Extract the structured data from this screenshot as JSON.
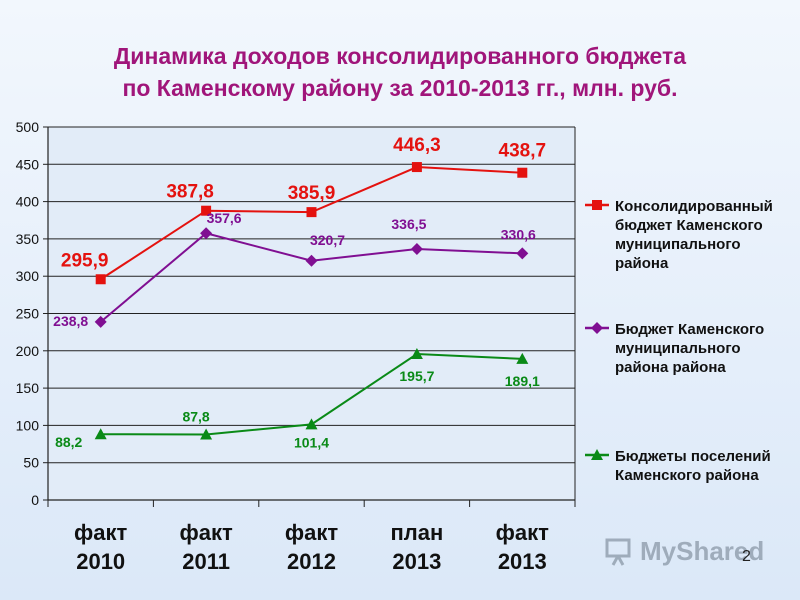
{
  "title": {
    "line1": "Динамика доходов консолидированного бюджета",
    "line2": "по Каменскому району за 2010-2013 гг., млн. руб."
  },
  "page_number": "2",
  "watermark": {
    "text": "MyShared"
  },
  "colors": {
    "consolidated": "#e4120f",
    "municipal": "#800f92",
    "settlements": "#0a8a17",
    "title": "#a0157a"
  },
  "chart_data": {
    "type": "line",
    "categories": [
      [
        "факт",
        "2010"
      ],
      [
        "факт",
        "2011"
      ],
      [
        "факт",
        "2012"
      ],
      [
        "план",
        "2013"
      ],
      [
        "факт",
        "2013"
      ]
    ],
    "ylim": [
      0,
      500
    ],
    "yticks": [
      "0",
      "50",
      "100",
      "150",
      "200",
      "250",
      "300",
      "350",
      "400",
      "450",
      "500"
    ],
    "grid": true,
    "legend_position": "right",
    "series": [
      {
        "name": [
          "Консолидированный",
          "бюджет Каменского",
          "муниципального",
          "района"
        ],
        "marker": "square",
        "color": "#e4120f",
        "values": [
          295.9,
          387.8,
          385.9,
          446.3,
          438.7
        ],
        "labels": [
          "295,9",
          "387,8",
          "385,9",
          "446,3",
          "438,7"
        ]
      },
      {
        "name": [
          "Бюджет Каменского",
          "муниципального",
          "района района"
        ],
        "marker": "diamond",
        "color": "#800f92",
        "values": [
          238.8,
          357.6,
          320.7,
          336.5,
          330.6
        ],
        "labels": [
          "238,8",
          "357,6",
          "320,7",
          "336,5",
          "330,6"
        ]
      },
      {
        "name": [
          "Бюджеты поселений",
          "Каменского района"
        ],
        "marker": "triangle",
        "color": "#0a8a17",
        "values": [
          88.2,
          87.8,
          101.4,
          195.7,
          189.1
        ],
        "labels": [
          "88,2",
          "87,8",
          "101,4",
          "195,7",
          "189,1"
        ]
      }
    ]
  }
}
